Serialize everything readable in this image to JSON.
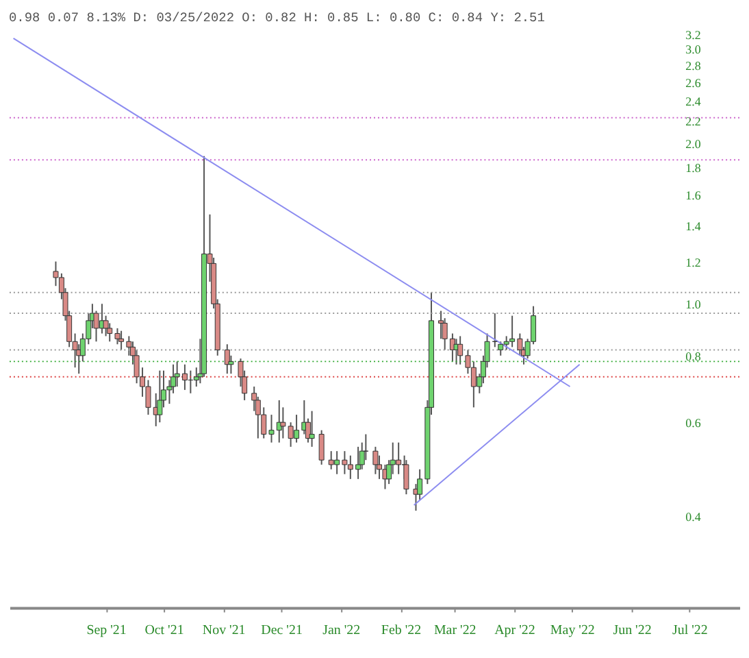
{
  "chart_data": {
    "type": "candlestick",
    "title": "0.98 0.07 8.13% D: 03/25/2022 O: 0.82 H: 0.85 L: 0.80 C: 0.84 Y: 2.51",
    "x": [
      "2021-08-06",
      "2021-08-09",
      "2021-08-11",
      "2021-08-13",
      "2021-08-16",
      "2021-08-18",
      "2021-08-20",
      "2021-08-23",
      "2021-08-25",
      "2021-08-27",
      "2021-08-30",
      "2021-09-01",
      "2021-09-03",
      "2021-09-07",
      "2021-09-09",
      "2021-09-13",
      "2021-09-15",
      "2021-09-17",
      "2021-09-20",
      "2021-09-23",
      "2021-09-27",
      "2021-09-29",
      "2021-10-01",
      "2021-10-04",
      "2021-10-06",
      "2021-10-08",
      "2021-10-12",
      "2021-10-15",
      "2021-10-18",
      "2021-10-20",
      "2021-10-22",
      "2021-10-25",
      "2021-10-27",
      "2021-10-29",
      "2021-11-03",
      "2021-11-05",
      "2021-11-10",
      "2021-11-12",
      "2021-11-17",
      "2021-11-19",
      "2021-11-22",
      "2021-11-26",
      "2021-11-30",
      "2021-12-02",
      "2021-12-06",
      "2021-12-09",
      "2021-12-13",
      "2021-12-15",
      "2021-12-17",
      "2021-12-22",
      "2021-12-27",
      "2021-12-30",
      "2022-01-03",
      "2022-01-06",
      "2022-01-10",
      "2022-01-12",
      "2022-01-14",
      "2022-01-19",
      "2022-01-21",
      "2022-01-24",
      "2022-01-26",
      "2022-01-28",
      "2022-01-31",
      "2022-02-03",
      "2022-02-04",
      "2022-02-09",
      "2022-02-11",
      "2022-02-15",
      "2022-02-17",
      "2022-02-22",
      "2022-02-24",
      "2022-02-28",
      "2022-03-02",
      "2022-03-04",
      "2022-03-08",
      "2022-03-11",
      "2022-03-14",
      "2022-03-16",
      "2022-03-18",
      "2022-03-22",
      "2022-03-25",
      "2022-03-28",
      "2022-03-31",
      "2022-04-04",
      "2022-04-06",
      "2022-04-08",
      "2022-04-11"
    ],
    "ohlc": [
      [
        1.15,
        1.2,
        1.08,
        1.12
      ],
      [
        1.12,
        1.14,
        1.02,
        1.05
      ],
      [
        1.05,
        1.07,
        0.93,
        0.95
      ],
      [
        0.95,
        0.97,
        0.83,
        0.85
      ],
      [
        0.85,
        0.88,
        0.76,
        0.82
      ],
      [
        0.82,
        0.84,
        0.74,
        0.8
      ],
      [
        0.8,
        0.88,
        0.78,
        0.86
      ],
      [
        0.86,
        0.96,
        0.84,
        0.93
      ],
      [
        0.93,
        1.0,
        0.9,
        0.96
      ],
      [
        0.96,
        0.97,
        0.85,
        0.9
      ],
      [
        0.9,
        1.0,
        0.88,
        0.93
      ],
      [
        0.93,
        0.95,
        0.87,
        0.9
      ],
      [
        0.9,
        0.92,
        0.85,
        0.88
      ],
      [
        0.88,
        0.9,
        0.84,
        0.86
      ],
      [
        0.86,
        0.89,
        0.82,
        0.85
      ],
      [
        0.85,
        0.87,
        0.8,
        0.83
      ],
      [
        0.83,
        0.85,
        0.77,
        0.8
      ],
      [
        0.8,
        0.82,
        0.71,
        0.73
      ],
      [
        0.73,
        0.76,
        0.67,
        0.7
      ],
      [
        0.7,
        0.72,
        0.62,
        0.64
      ],
      [
        0.64,
        0.68,
        0.59,
        0.62
      ],
      [
        0.62,
        0.75,
        0.6,
        0.66
      ],
      [
        0.66,
        0.75,
        0.64,
        0.69
      ],
      [
        0.69,
        0.72,
        0.65,
        0.7
      ],
      [
        0.7,
        0.77,
        0.68,
        0.73
      ],
      [
        0.73,
        0.78,
        0.7,
        0.74
      ],
      [
        0.74,
        0.77,
        0.69,
        0.72
      ],
      [
        0.72,
        0.75,
        0.68,
        0.72
      ],
      [
        0.72,
        0.76,
        0.7,
        0.73
      ],
      [
        0.73,
        0.86,
        0.71,
        0.74
      ],
      [
        0.74,
        1.89,
        0.73,
        1.24
      ],
      [
        1.24,
        1.47,
        1.1,
        1.19
      ],
      [
        1.19,
        1.22,
        0.98,
        1.0
      ],
      [
        1.0,
        1.02,
        0.8,
        0.82
      ],
      [
        0.82,
        0.84,
        0.74,
        0.77
      ],
      [
        0.77,
        0.8,
        0.74,
        0.78
      ],
      [
        0.78,
        0.79,
        0.7,
        0.73
      ],
      [
        0.73,
        0.75,
        0.66,
        0.68
      ],
      [
        0.68,
        0.7,
        0.63,
        0.66
      ],
      [
        0.66,
        0.67,
        0.56,
        0.62
      ],
      [
        0.62,
        0.64,
        0.56,
        0.57
      ],
      [
        0.57,
        0.62,
        0.55,
        0.58
      ],
      [
        0.58,
        0.66,
        0.55,
        0.6
      ],
      [
        0.6,
        0.64,
        0.56,
        0.59
      ],
      [
        0.59,
        0.6,
        0.54,
        0.56
      ],
      [
        0.56,
        0.62,
        0.55,
        0.58
      ],
      [
        0.58,
        0.66,
        0.57,
        0.6
      ],
      [
        0.6,
        0.61,
        0.55,
        0.56
      ],
      [
        0.56,
        0.63,
        0.54,
        0.57
      ],
      [
        0.57,
        0.58,
        0.5,
        0.51
      ],
      [
        0.51,
        0.53,
        0.49,
        0.5
      ],
      [
        0.5,
        0.53,
        0.48,
        0.51
      ],
      [
        0.51,
        0.53,
        0.48,
        0.5
      ],
      [
        0.5,
        0.52,
        0.47,
        0.49
      ],
      [
        0.49,
        0.54,
        0.47,
        0.5
      ],
      [
        0.5,
        0.55,
        0.49,
        0.53
      ],
      [
        0.53,
        0.57,
        0.51,
        0.53
      ],
      [
        0.53,
        0.54,
        0.48,
        0.5
      ],
      [
        0.5,
        0.52,
        0.47,
        0.49
      ],
      [
        0.49,
        0.5,
        0.45,
        0.47
      ],
      [
        0.47,
        0.51,
        0.46,
        0.5
      ],
      [
        0.5,
        0.55,
        0.48,
        0.51
      ],
      [
        0.51,
        0.55,
        0.48,
        0.5
      ],
      [
        0.5,
        0.52,
        0.47,
        0.5
      ],
      [
        0.5,
        0.51,
        0.44,
        0.45
      ],
      [
        0.45,
        0.46,
        0.41,
        0.44
      ],
      [
        0.44,
        0.49,
        0.43,
        0.47
      ],
      [
        0.47,
        0.66,
        0.46,
        0.64
      ],
      [
        0.64,
        1.05,
        0.62,
        0.93
      ],
      [
        0.93,
        0.97,
        0.86,
        0.92
      ],
      [
        0.92,
        0.94,
        0.82,
        0.86
      ],
      [
        0.86,
        0.88,
        0.78,
        0.82
      ],
      [
        0.82,
        0.86,
        0.77,
        0.84
      ],
      [
        0.84,
        0.87,
        0.77,
        0.8
      ],
      [
        0.8,
        0.82,
        0.74,
        0.76
      ],
      [
        0.76,
        0.78,
        0.64,
        0.7
      ],
      [
        0.7,
        0.74,
        0.68,
        0.73
      ],
      [
        0.73,
        0.8,
        0.71,
        0.78
      ],
      [
        0.78,
        0.88,
        0.76,
        0.85
      ],
      [
        0.85,
        0.96,
        0.83,
        0.85
      ],
      [
        0.82,
        0.85,
        0.8,
        0.84
      ],
      [
        0.84,
        0.87,
        0.82,
        0.85
      ],
      [
        0.85,
        0.95,
        0.83,
        0.86
      ],
      [
        0.86,
        0.88,
        0.8,
        0.82
      ],
      [
        0.82,
        0.83,
        0.77,
        0.8
      ],
      [
        0.8,
        0.86,
        0.79,
        0.85
      ],
      [
        0.85,
        0.99,
        0.84,
        0.95
      ]
    ],
    "series": [
      {
        "type": "line",
        "color": "#8c8cf0",
        "x": [
          "2021-07-15",
          "2022-04-30"
        ],
        "values": [
          3.14,
          0.7
        ]
      },
      {
        "type": "line",
        "color": "#8c8cf0",
        "x": [
          "2022-02-08",
          "2022-05-05"
        ],
        "values": [
          0.42,
          0.77
        ]
      }
    ],
    "ref_lines": [
      {
        "axis": "y",
        "value": 2.23,
        "color": "#cc66cc",
        "line_style": "dotted"
      },
      {
        "axis": "y",
        "value": 1.86,
        "color": "#cc66cc",
        "line_style": "dotted"
      },
      {
        "axis": "y",
        "value": 1.05,
        "color": "#999999",
        "line_style": "dotted"
      },
      {
        "axis": "y",
        "value": 0.96,
        "color": "#999999",
        "line_style": "dotted"
      },
      {
        "axis": "y",
        "value": 0.82,
        "color": "#999999",
        "line_style": "dotted"
      },
      {
        "axis": "y",
        "value": 0.78,
        "color": "#33aa33",
        "line_style": "dotted"
      },
      {
        "axis": "y",
        "value": 0.73,
        "color": "#dd4444",
        "line_style": "dotted"
      }
    ],
    "log": "y",
    "xlim": [
      "2021-07-13",
      "2022-07-27"
    ],
    "xticks": [
      {
        "value": "2021-09-01",
        "label": "Sep '21"
      },
      {
        "value": "2021-10-01",
        "label": "Oct '21"
      },
      {
        "value": "2021-11-01",
        "label": "Nov '21"
      },
      {
        "value": "2021-12-01",
        "label": "Dec '21"
      },
      {
        "value": "2022-01-01",
        "label": "Jan '22"
      },
      {
        "value": "2022-02-01",
        "label": "Feb '22"
      },
      {
        "value": "2022-03-01",
        "label": "Mar '22"
      },
      {
        "value": "2022-04-01",
        "label": "Apr '22"
      },
      {
        "value": "2022-05-01",
        "label": "May '22"
      },
      {
        "value": "2022-06-01",
        "label": "Jun '22"
      },
      {
        "value": "2022-07-01",
        "label": "Jul '22"
      }
    ],
    "ylim": [
      0.27,
      3.2
    ],
    "yticks": [
      0.4,
      0.6,
      0.8,
      {
        "value": 1,
        "label": "1.0"
      },
      1.2,
      1.4,
      1.6,
      1.8,
      {
        "value": 2,
        "label": "2.0"
      },
      2.2,
      2.4,
      2.6,
      2.8,
      {
        "value": 3,
        "label": "3.0"
      },
      3.2
    ]
  }
}
